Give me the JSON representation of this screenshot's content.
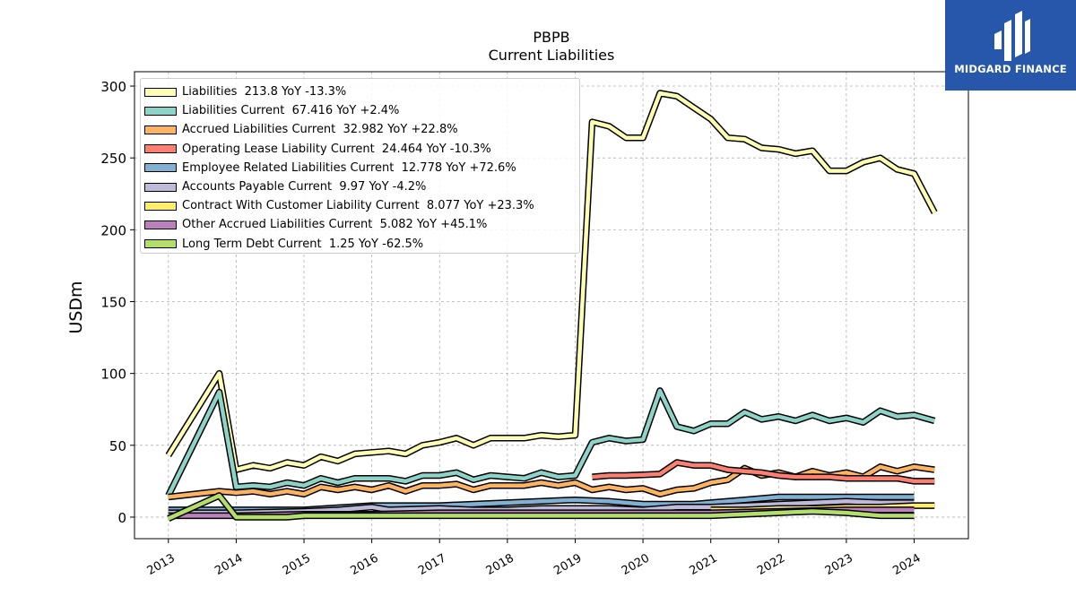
{
  "title": "PBPB",
  "subtitle": "Current  Liabilities",
  "logo_text": "MIDGARD FINANCE",
  "colors": {
    "frame": "#000000",
    "grid": "#b0b0b0",
    "logo_bg": "#2757aa"
  },
  "chart_data": {
    "type": "line",
    "ylabel": "USDm",
    "ylim": [
      -15,
      310
    ],
    "xlim": [
      2012.5,
      2024.8
    ],
    "yticks": [
      0,
      50,
      100,
      150,
      200,
      250,
      300
    ],
    "xticks": [
      "2013",
      "2014",
      "2015",
      "2016",
      "2017",
      "2018",
      "2019",
      "2020",
      "2021",
      "2022",
      "2023",
      "2024"
    ],
    "grid": true,
    "legend_position": "upper-left",
    "series": [
      {
        "name": "Liabilities",
        "legend": "Liabilities  213.8 YoY -13.3%",
        "color": "#ffffb3",
        "x": [
          2013.0,
          2013.75,
          2014.0,
          2014.25,
          2014.5,
          2014.75,
          2015.0,
          2015.25,
          2015.5,
          2015.75,
          2016.0,
          2016.25,
          2016.5,
          2016.75,
          2017.0,
          2017.25,
          2017.5,
          2017.75,
          2018.0,
          2018.25,
          2018.5,
          2018.75,
          2019.0,
          2019.25,
          2019.5,
          2019.75,
          2020.0,
          2020.25,
          2020.5,
          2020.75,
          2021.0,
          2021.25,
          2021.5,
          2021.75,
          2022.0,
          2022.25,
          2022.5,
          2022.75,
          2023.0,
          2023.25,
          2023.5,
          2023.75,
          2024.0,
          2024.3
        ],
        "y": [
          43,
          100,
          33,
          36,
          34,
          38,
          36,
          42,
          39,
          44,
          45,
          46,
          44,
          50,
          52,
          55,
          50,
          55,
          55,
          55,
          57,
          56,
          57,
          275,
          272,
          264,
          264,
          295,
          293,
          285,
          277,
          264,
          263,
          257,
          256,
          253,
          255,
          241,
          241,
          247,
          250,
          242,
          239,
          212
        ]
      },
      {
        "name": "Liabilities Current",
        "legend": "Liabilities Current  67.416 YoY +2.4%",
        "color": "#8dd3c7",
        "x": [
          2013.0,
          2013.75,
          2014.0,
          2014.25,
          2014.5,
          2014.75,
          2015.0,
          2015.25,
          2015.5,
          2015.75,
          2016.0,
          2016.25,
          2016.5,
          2016.75,
          2017.0,
          2017.25,
          2017.5,
          2017.75,
          2018.0,
          2018.25,
          2018.5,
          2018.75,
          2019.0,
          2019.25,
          2019.5,
          2019.75,
          2020.0,
          2020.25,
          2020.5,
          2020.75,
          2021.0,
          2021.25,
          2021.5,
          2021.75,
          2022.0,
          2022.25,
          2022.5,
          2022.75,
          2023.0,
          2023.25,
          2023.5,
          2023.75,
          2024.0,
          2024.3
        ],
        "y": [
          15,
          87,
          21,
          22,
          21,
          24,
          22,
          27,
          24,
          27,
          27,
          27,
          25,
          29,
          29,
          31,
          26,
          29,
          28,
          27,
          31,
          28,
          29,
          52,
          55,
          53,
          54,
          88,
          63,
          60,
          65,
          65,
          73,
          68,
          70,
          67,
          71,
          67,
          69,
          66,
          74,
          70,
          71,
          67
        ]
      },
      {
        "name": "Accrued Liabilities Current",
        "legend": "Accrued Liabilities Current  32.982 YoY +22.8%",
        "color": "#fdb462",
        "x": [
          2013.0,
          2013.75,
          2014.0,
          2014.25,
          2014.5,
          2014.75,
          2015.0,
          2015.25,
          2015.5,
          2015.75,
          2016.0,
          2016.25,
          2016.5,
          2016.75,
          2017.0,
          2017.25,
          2017.5,
          2017.75,
          2018.0,
          2018.25,
          2018.5,
          2018.75,
          2019.0,
          2019.25,
          2019.5,
          2019.75,
          2020.0,
          2020.25,
          2020.5,
          2020.75,
          2021.0,
          2021.25,
          2021.5,
          2021.75,
          2022.0,
          2022.25,
          2022.5,
          2022.75,
          2023.0,
          2023.25,
          2023.5,
          2023.75,
          2024.0,
          2024.3
        ],
        "y": [
          14,
          18,
          17,
          18,
          16,
          18,
          16,
          21,
          19,
          21,
          19,
          22,
          18,
          22,
          22,
          23,
          19,
          22,
          22,
          22,
          24,
          22,
          24,
          19,
          21,
          19,
          20,
          16,
          19,
          20,
          24,
          26,
          34,
          29,
          31,
          28,
          32,
          29,
          31,
          28,
          35,
          32,
          35,
          33
        ]
      },
      {
        "name": "Operating Lease Liability Current",
        "legend": "Operating Lease Liability Current  24.464 YoY -10.3%",
        "color": "#fb8072",
        "x": [
          2019.25,
          2019.5,
          2019.75,
          2020.0,
          2020.25,
          2020.5,
          2020.75,
          2021.0,
          2021.25,
          2021.5,
          2021.75,
          2022.0,
          2022.25,
          2022.5,
          2022.75,
          2023.0,
          2023.25,
          2023.5,
          2023.75,
          2024.0,
          2024.3
        ],
        "y": [
          28,
          29,
          29,
          29.5,
          30,
          38,
          36,
          36,
          33,
          32,
          31,
          29,
          28,
          28,
          28,
          27,
          27,
          27,
          27,
          25,
          25
        ]
      },
      {
        "name": "Employee Related Liabilities Current",
        "legend": "Employee Related Liabilities Current  12.778 YoY +72.6%",
        "color": "#80b1d3",
        "x": [
          2013.0,
          2014.0,
          2015.0,
          2016.0,
          2017.0,
          2018.0,
          2019.0,
          2019.5,
          2020.0,
          2020.25,
          2020.75,
          2021.0,
          2021.5,
          2022.0,
          2022.5,
          2023.0,
          2023.5,
          2024.0
        ],
        "y": [
          5,
          5,
          5,
          8,
          8,
          10,
          12,
          11,
          9,
          9,
          9,
          10,
          12,
          14,
          14,
          14,
          14,
          14
        ]
      },
      {
        "name": "Accounts Payable Current",
        "legend": "Accounts Payable Current  9.97 YoY -4.2%",
        "color": "#bebada",
        "x": [
          2013.0,
          2014.0,
          2015.0,
          2015.5,
          2016.0,
          2016.25,
          2017.0,
          2017.5,
          2018.0,
          2018.5,
          2019.0,
          2019.5,
          2020.0,
          2020.5,
          2021.0,
          2021.5,
          2022.0,
          2022.5,
          2023.0,
          2023.5,
          2024.0
        ],
        "y": [
          3,
          3,
          4,
          5,
          7,
          5,
          6,
          5,
          5,
          6,
          6,
          6,
          5,
          7,
          7,
          8,
          9,
          10,
          11,
          10,
          10
        ]
      },
      {
        "name": "Contract With Customer Liability Current",
        "legend": "Contract With Customer Liability Current  8.077 YoY +23.3%",
        "color": "#ffed6f",
        "x": [
          2021.0,
          2021.5,
          2022.0,
          2022.5,
          2023.0,
          2023.5,
          2024.0,
          2024.3
        ],
        "y": [
          5,
          5,
          6,
          6,
          7,
          7,
          8,
          8
        ]
      },
      {
        "name": "Other Accrued Liabilities Current",
        "legend": "Other Accrued Liabilities Current  5.082 YoY +45.1%",
        "color": "#bc80bd",
        "x": [
          2013.0,
          2014.0,
          2015.0,
          2016.0,
          2017.0,
          2018.0,
          2019.0,
          2020.0,
          2021.0,
          2022.0,
          2023.0,
          2024.0
        ],
        "y": [
          1,
          1,
          2,
          2,
          3,
          3,
          3,
          3,
          3,
          4,
          5,
          5
        ]
      },
      {
        "name": "Long Term Debt Current",
        "legend": "Long Term Debt Current  1.25 YoY -62.5%",
        "color": "#b3de69",
        "x": [
          2013.0,
          2013.75,
          2014.0,
          2014.75,
          2015.0,
          2016.0,
          2017.0,
          2018.0,
          2019.0,
          2020.0,
          2021.0,
          2022.0,
          2022.5,
          2023.0,
          2023.5,
          2024.0
        ],
        "y": [
          -1,
          15,
          0,
          0,
          1,
          1,
          1,
          1,
          1,
          1,
          1,
          3,
          4,
          3,
          1,
          1
        ]
      }
    ]
  }
}
